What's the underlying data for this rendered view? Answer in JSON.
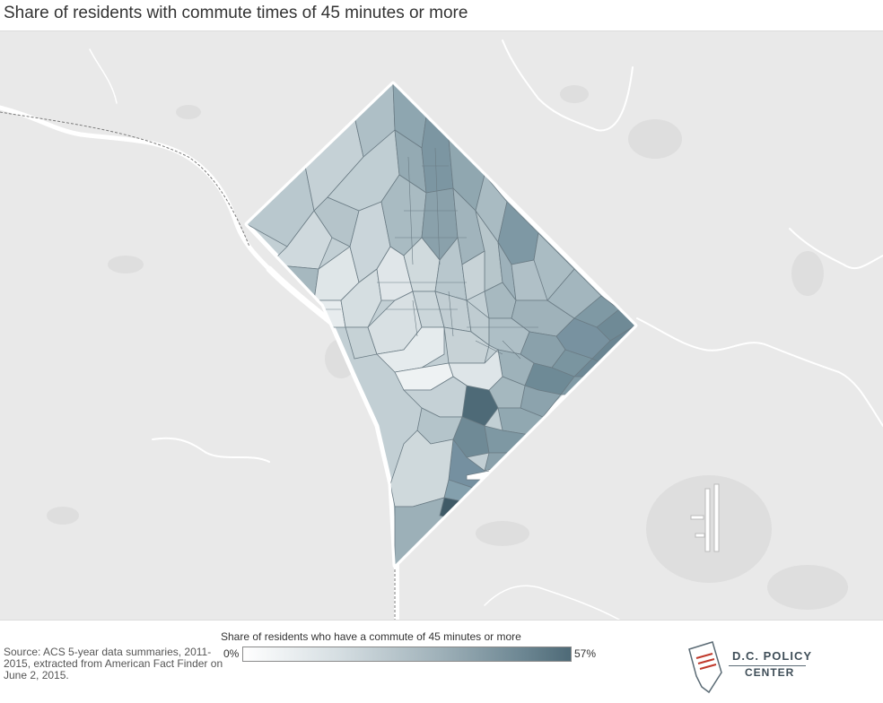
{
  "title": "Share of residents with commute times of 45 minutes or more",
  "legend": {
    "title": "Share of residents who have a commute of 45 minutes or more",
    "min_label": "0%",
    "max_label": "57%",
    "color_low": "#ffffff",
    "color_high": "#4e6a77"
  },
  "source": "Source: ACS 5-year data summaries, 2011-2015, extracted from American Fact Finder on June 2, 2015.",
  "logo": {
    "line1": "D.C. POLICY",
    "line2": "CENTER"
  },
  "colors": {
    "basemap": "#e9e9e9",
    "water": "#ffffff",
    "park": "#dddddd",
    "tract_border": "#5e6f78"
  }
}
